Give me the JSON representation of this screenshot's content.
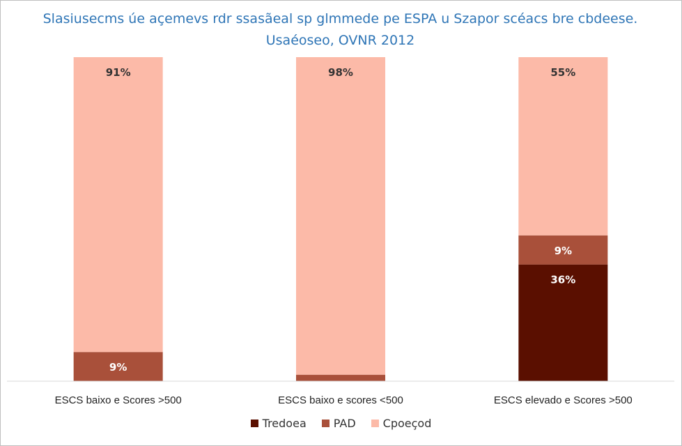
{
  "chart_data": {
    "type": "bar",
    "stacked": true,
    "title": "Slasiusecms úe açemevs rdr ssasãeal sp glmmede pe ESPA u Szapor scéacs bre cbdeese. Usaéoseo, OVNR 2012",
    "categories": [
      "ESCS baixo e Scores >500",
      "ESCS baixo e scores <500",
      "ESCS elevado e Scores >500"
    ],
    "series": [
      {
        "name": "Tredoea",
        "color": "#5a0f00",
        "values": [
          0,
          0,
          36
        ],
        "labels": [
          "",
          "",
          "36%"
        ],
        "label_color": "#ffffff"
      },
      {
        "name": "PAD",
        "color": "#a9503a",
        "values": [
          9,
          2,
          9
        ],
        "labels": [
          "9%",
          "",
          "9%"
        ],
        "label_color": "#ffffff"
      },
      {
        "name": "Cpoeçod",
        "color": "#fcbaa8",
        "values": [
          91,
          98,
          55
        ],
        "labels": [
          "91%",
          "98%",
          "55%"
        ],
        "label_color": "#333333"
      }
    ],
    "ylim": [
      0,
      100
    ],
    "grid": false,
    "legend_position": "bottom"
  }
}
